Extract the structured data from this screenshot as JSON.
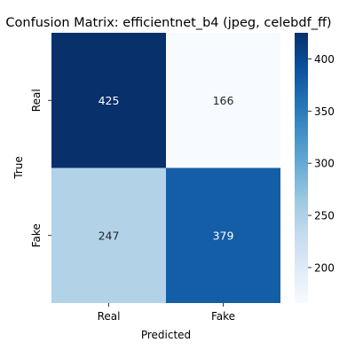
{
  "chart_data": {
    "type": "heatmap",
    "title": "Confusion Matrix: efficientnet_b4 (jpeg, celebdf_ff)",
    "xlabel": "Predicted",
    "ylabel": "True",
    "x_categories": [
      "Real",
      "Fake"
    ],
    "y_categories": [
      "Real",
      "Fake"
    ],
    "values": [
      [
        425,
        166
      ],
      [
        247,
        379
      ]
    ],
    "colormap": "Blues",
    "colorbar": {
      "min": 166,
      "max": 425,
      "ticks": [
        200,
        250,
        300,
        350,
        400
      ]
    },
    "cell_text_colors": {
      "dark": "#ffffff",
      "light": "#262626"
    }
  }
}
